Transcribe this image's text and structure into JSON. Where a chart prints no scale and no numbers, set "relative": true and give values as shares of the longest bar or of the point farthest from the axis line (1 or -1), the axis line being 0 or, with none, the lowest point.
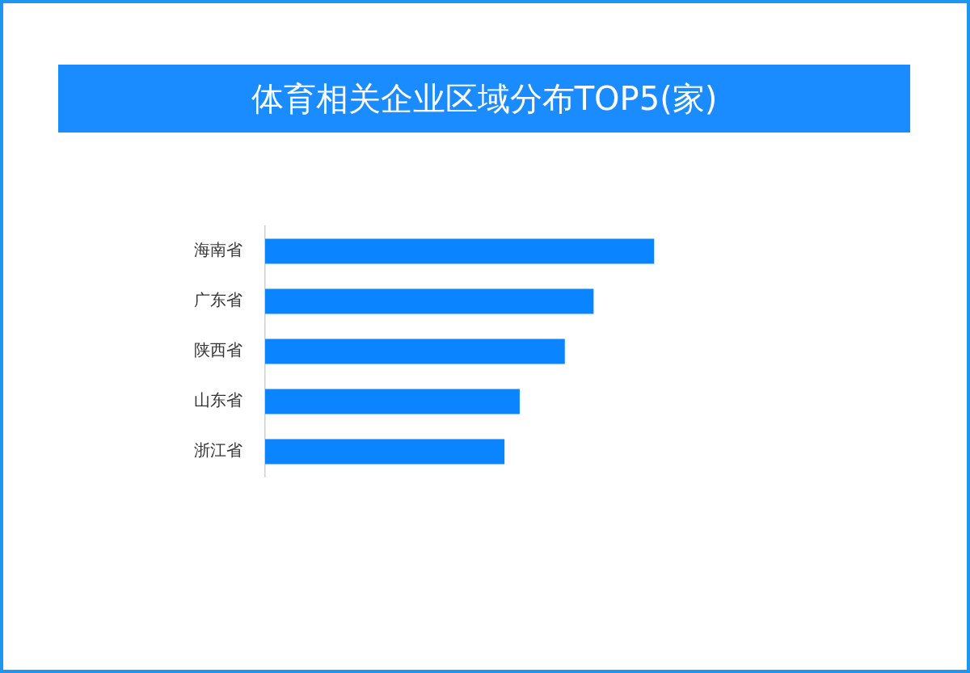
{
  "chart_data": {
    "type": "bar",
    "orientation": "horizontal",
    "relative": true,
    "title": "体育相关企业区域分布TOP5(家)",
    "categories": [
      "海南省",
      "广东省",
      "陕西省",
      "山东省",
      "浙江省"
    ],
    "values": [
      1,
      0.844,
      0.77,
      0.654,
      0.615
    ],
    "color": "#0a84ff"
  }
}
